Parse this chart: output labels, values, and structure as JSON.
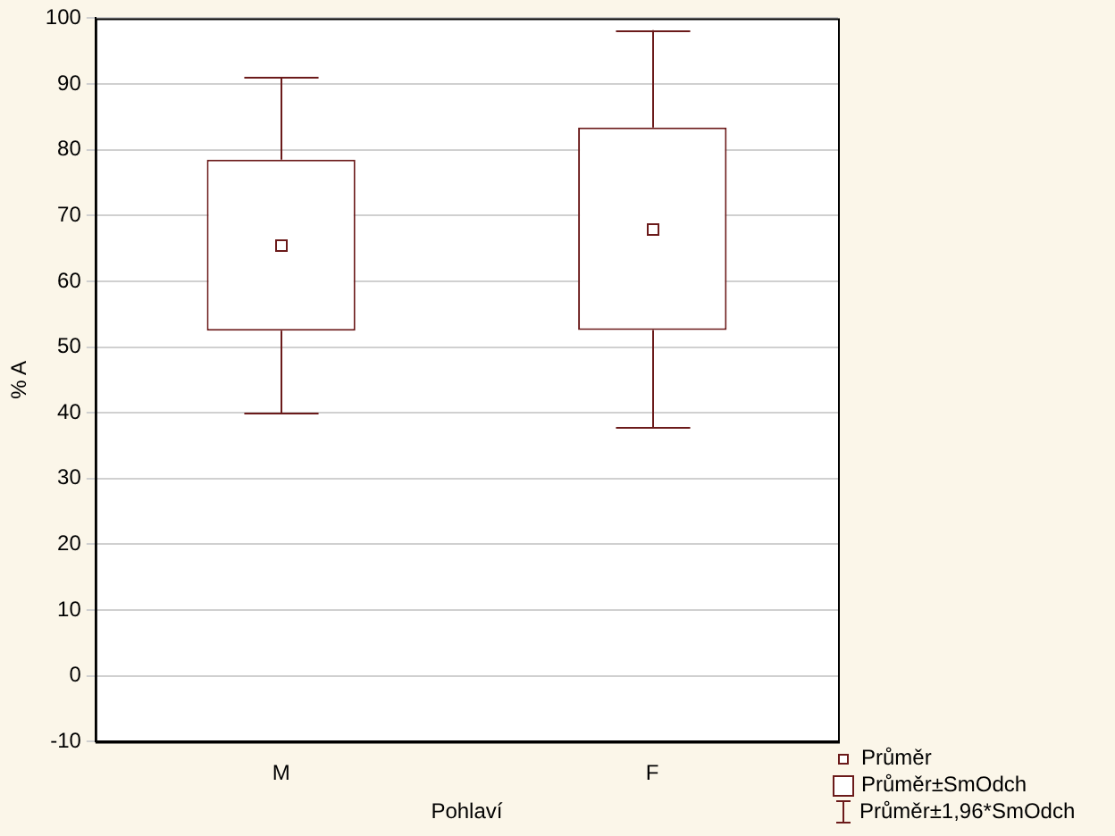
{
  "chart_data": {
    "type": "box",
    "xlabel": "Pohlaví",
    "ylabel": "% A",
    "categories": [
      "M",
      "F"
    ],
    "boxes": [
      {
        "low": 40,
        "q1": 52.5,
        "q3": 78.5,
        "high": 91,
        "mean": 65.5
      },
      {
        "low": 37.8,
        "q1": 52.6,
        "q3": 83.4,
        "high": 98.2,
        "mean": 68
      }
    ],
    "color": "#6b1a1a",
    "ylim": [
      -10,
      100
    ],
    "yticks": [
      -10,
      0,
      10,
      20,
      30,
      40,
      50,
      60,
      70,
      80,
      90,
      100
    ],
    "grid": "y",
    "annotations": [
      "Průměr",
      "Průměr±SmOdch",
      "Průměr±1,96*SmOdch"
    ]
  }
}
